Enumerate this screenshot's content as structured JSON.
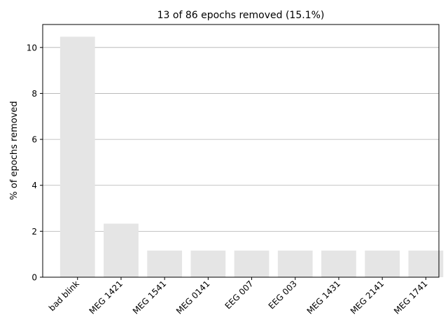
{
  "chart_data": {
    "type": "bar",
    "title": "13 of 86 epochs removed (15.1%)",
    "xlabel": "",
    "ylabel": "% of epochs removed",
    "categories": [
      "bad blink",
      "MEG 1421",
      "MEG 1541",
      "MEG 0141",
      "EEG 007",
      "EEG 003",
      "MEG 1431",
      "MEG 2141",
      "MEG 1741"
    ],
    "values": [
      10.47,
      2.33,
      1.16,
      1.16,
      1.16,
      1.16,
      1.16,
      1.16,
      1.16
    ],
    "ylim": [
      0,
      11
    ],
    "yticks": [
      0,
      2,
      4,
      6,
      8,
      10
    ],
    "grid": "horizontal",
    "bar_color": "#e5e5e5",
    "grid_color": "#b0b0b0"
  }
}
